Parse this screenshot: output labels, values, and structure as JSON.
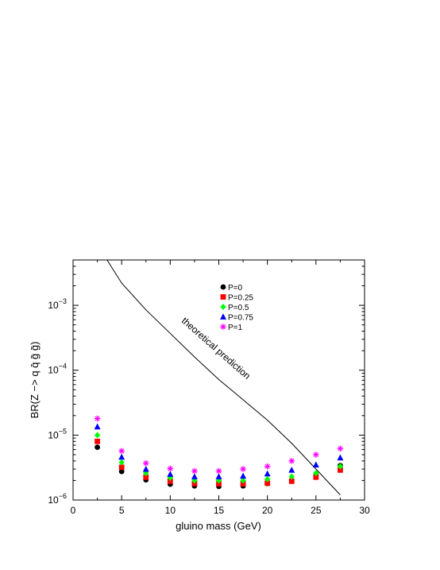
{
  "chart_data": {
    "type": "scatter",
    "xlabel": "gluino mass  (GeV)",
    "ylabel": "BR(Z −> q q̄ g̃ g̃)",
    "xlim": [
      0,
      30
    ],
    "ylim": [
      1e-06,
      0.005
    ],
    "yscale": "log",
    "x_ticks": [
      0,
      5,
      10,
      15,
      20,
      25,
      30
    ],
    "y_ticks": [
      {
        "value": 1e-06,
        "base": "10",
        "exp": "−6"
      },
      {
        "value": 1e-05,
        "base": "10",
        "exp": "−5"
      },
      {
        "value": 0.0001,
        "base": "10",
        "exp": "−4"
      },
      {
        "value": 0.001,
        "base": "10",
        "exp": "−3"
      }
    ],
    "grid": false,
    "legend_position": "top-center",
    "x": [
      2.5,
      5,
      7.5,
      10,
      12.5,
      15,
      17.5,
      20,
      22.5,
      25,
      27.5
    ],
    "series": [
      {
        "name": "P=0",
        "marker": "circle",
        "color": "#000000",
        "values": [
          6.5e-06,
          2.75e-06,
          2.05e-06,
          1.75e-06,
          1.65e-06,
          1.62e-06,
          1.65e-06,
          1.8e-06,
          2e-06,
          2.4e-06,
          3.4e-06
        ]
      },
      {
        "name": "P=0.25",
        "marker": "square",
        "color": "#ff0000",
        "values": [
          8e-06,
          3.2e-06,
          2.25e-06,
          1.95e-06,
          1.8e-06,
          1.78e-06,
          1.78e-06,
          1.82e-06,
          1.95e-06,
          2.25e-06,
          2.9e-06
        ]
      },
      {
        "name": "P=0.5",
        "marker": "diamond",
        "color": "#00ff00",
        "values": [
          1e-05,
          3.8e-06,
          2.6e-06,
          2.2e-06,
          2e-06,
          2e-06,
          2e-06,
          2.1e-06,
          2.3e-06,
          2.6e-06,
          3.3e-06
        ]
      },
      {
        "name": "P=0.75",
        "marker": "triangle",
        "color": "#0000ff",
        "values": [
          1.35e-05,
          4.6e-06,
          3e-06,
          2.5e-06,
          2.3e-06,
          2.3e-06,
          2.35e-06,
          2.55e-06,
          2.9e-06,
          3.5e-06,
          4.5e-06
        ]
      },
      {
        "name": "P=1",
        "marker": "star",
        "color": "#ff00ff",
        "values": [
          1.8e-05,
          5.7e-06,
          3.7e-06,
          3.05e-06,
          2.8e-06,
          2.8e-06,
          3e-06,
          3.3e-06,
          4e-06,
          5e-06,
          6.2e-06
        ]
      }
    ],
    "line": {
      "label": "theoretical prediction",
      "color": "#000000",
      "x": [
        3.5,
        5,
        7.5,
        10,
        12.5,
        15,
        17.5,
        20,
        22.5,
        25,
        27.5
      ],
      "values": [
        0.005,
        0.0022,
        0.00085,
        0.00037,
        0.00016,
        7.2e-05,
        3.5e-05,
        1.7e-05,
        7.5e-06,
        3e-06,
        1.2e-06
      ]
    }
  }
}
